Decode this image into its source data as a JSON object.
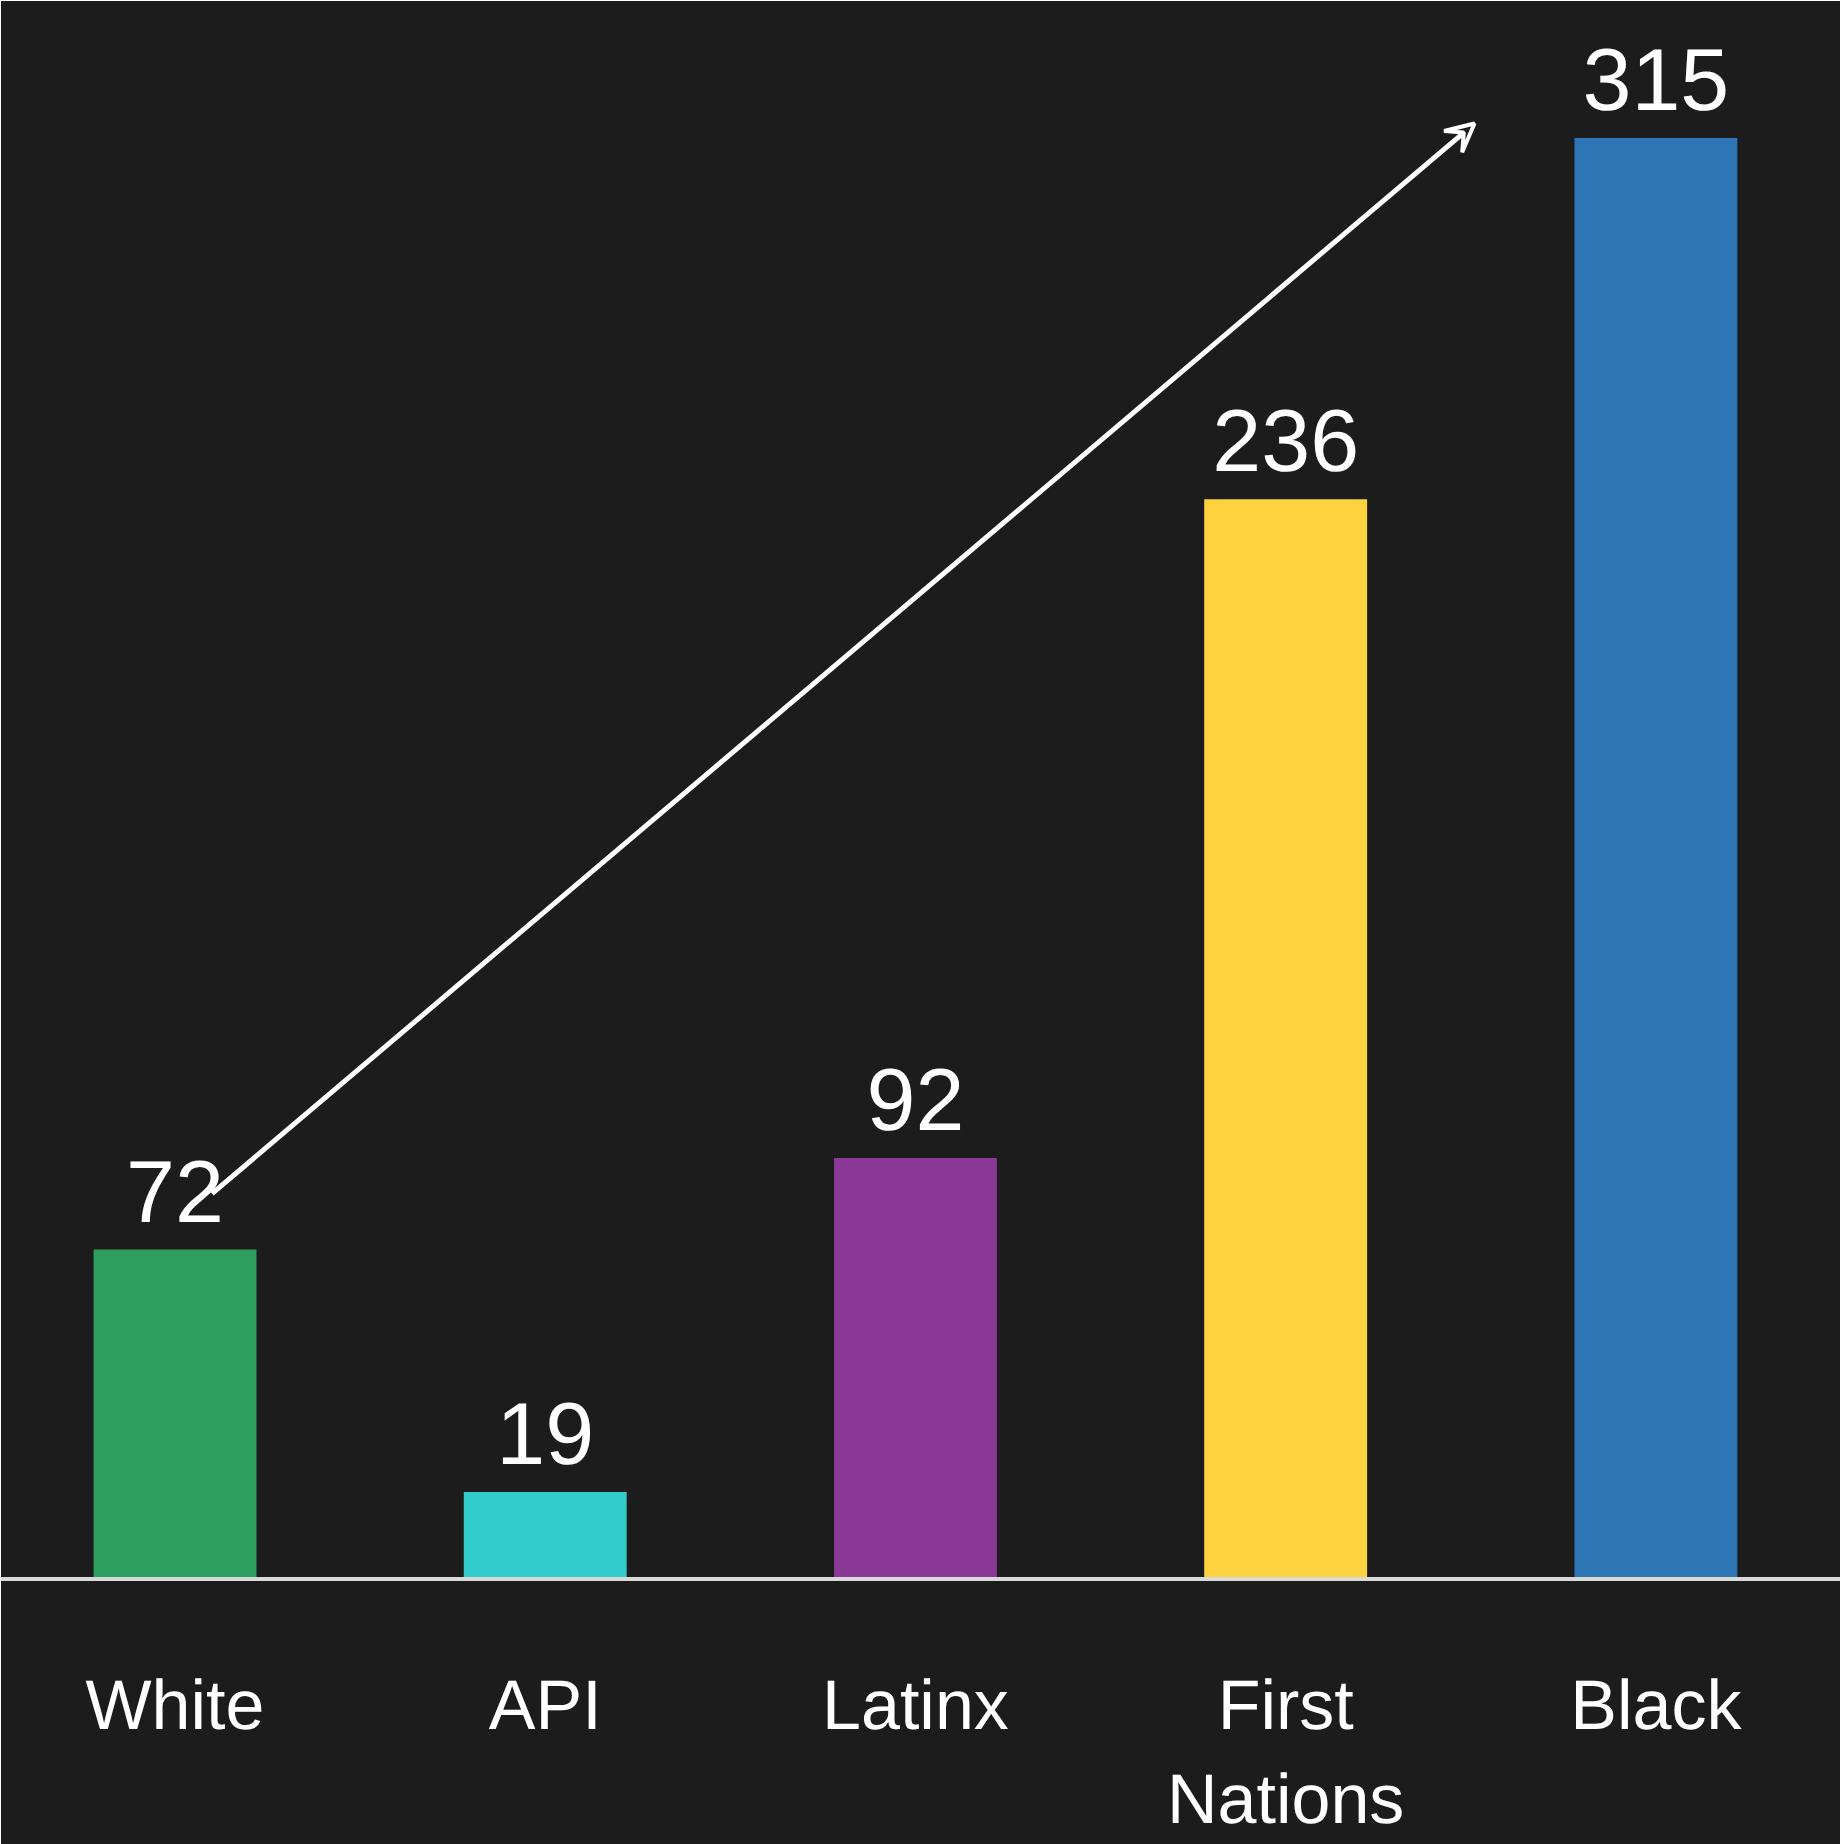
{
  "chart_data": {
    "type": "bar",
    "categories": [
      "White",
      "API",
      "Latinx",
      "First Nations",
      "Black"
    ],
    "values": [
      72,
      19,
      92,
      236,
      315
    ],
    "colors": [
      "#2e9e5e",
      "#33cccc",
      "#8a3a96",
      "#ffd23f",
      "#2e75b6"
    ],
    "data_labels": true
  }
}
